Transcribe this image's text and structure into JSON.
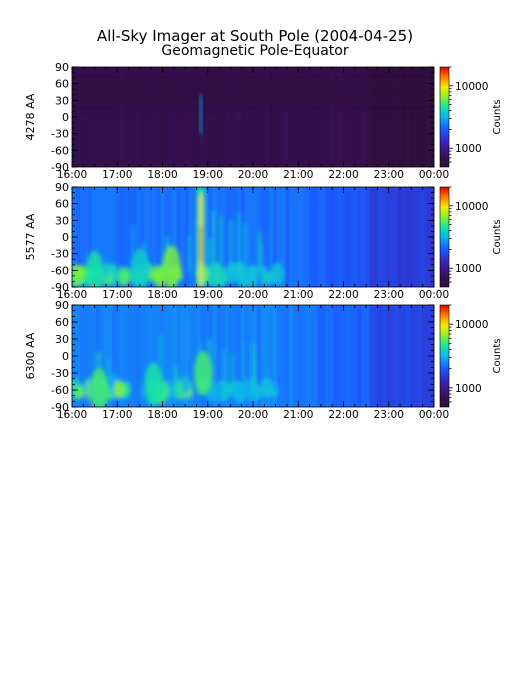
{
  "title": "All-Sky Imager at South Pole (2004-04-25)",
  "subtitle": "Geomagnetic Pole-Equator",
  "colors": {
    "background": "#ffffff",
    "colormap": [
      "#2b0e34",
      "#3a1260",
      "#3a22b8",
      "#1a5cff",
      "#10b4f0",
      "#16e6a0",
      "#8cf02a",
      "#f0f000",
      "#ff7a00",
      "#e00000"
    ]
  },
  "chart_data": [
    {
      "type": "heatmap",
      "ylabel": "4278 AA",
      "x_ticks": [
        "16:00",
        "17:00",
        "18:00",
        "19:00",
        "20:00",
        "21:00",
        "22:00",
        "23:00",
        "00:00"
      ],
      "y_ticks": [
        "90",
        "60",
        "30",
        "0",
        "-30",
        "-60",
        "-90"
      ],
      "ylim": [
        -90,
        90
      ],
      "colorbar": {
        "label": "Counts",
        "ticks": [
          "10000",
          "1000"
        ],
        "scale": "log",
        "range": [
          500,
          20000
        ]
      },
      "features": [
        {
          "time_h": 18.85,
          "lat": 0,
          "intensity": 0.45,
          "note": "faint narrow arc"
        }
      ],
      "background_level": 0.06
    },
    {
      "type": "heatmap",
      "ylabel": "5577 AA",
      "x_ticks": [
        "16:00",
        "17:00",
        "18:00",
        "19:00",
        "20:00",
        "21:00",
        "22:00",
        "23:00",
        "00:00"
      ],
      "y_ticks": [
        "90",
        "60",
        "30",
        "0",
        "-30",
        "-60",
        "-90"
      ],
      "ylim": [
        -90,
        90
      ],
      "colorbar": {
        "label": "Counts",
        "ticks": [
          "10000",
          "1000"
        ],
        "scale": "log",
        "range": [
          500,
          20000
        ]
      },
      "features": [
        {
          "time_h": 18.85,
          "lat": -10,
          "intensity": 1.0,
          "note": "bright arc"
        },
        {
          "time_h": 16.5,
          "lat": -65,
          "intensity": 0.55
        },
        {
          "time_h": 17.5,
          "lat": -60,
          "intensity": 0.5
        },
        {
          "time_h": 18.2,
          "lat": -55,
          "intensity": 0.65
        }
      ],
      "background_level": 0.3
    },
    {
      "type": "heatmap",
      "ylabel": "6300 AA",
      "x_ticks": [
        "16:00",
        "17:00",
        "18:00",
        "19:00",
        "20:00",
        "21:00",
        "22:00",
        "23:00",
        "00:00"
      ],
      "y_ticks": [
        "90",
        "60",
        "30",
        "0",
        "-30",
        "-60",
        "-90"
      ],
      "ylim": [
        -90,
        90
      ],
      "colorbar": {
        "label": "Counts",
        "ticks": [
          "10000",
          "1000"
        ],
        "scale": "log",
        "range": [
          500,
          20000
        ]
      },
      "features": [
        {
          "time_h": 16.6,
          "lat": -60,
          "intensity": 0.6
        },
        {
          "time_h": 17.8,
          "lat": -50,
          "intensity": 0.55
        },
        {
          "time_h": 18.9,
          "lat": -30,
          "intensity": 0.6
        }
      ],
      "background_level": 0.32
    }
  ]
}
